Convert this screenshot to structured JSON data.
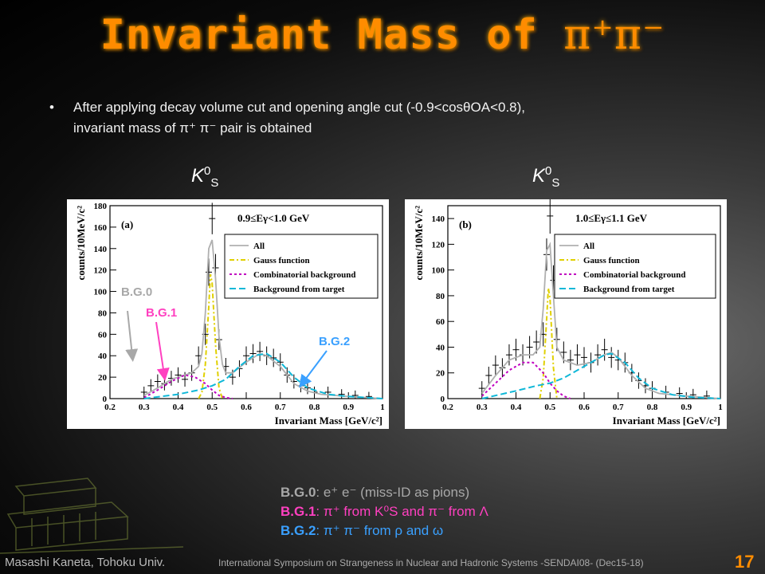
{
  "title": {
    "text": "Invariant Mass of ",
    "sym": "π⁺π⁻"
  },
  "bullet": {
    "line1": "After applying decay volume cut and opening angle cut (-0.9<cosθOA<0.8),",
    "line2": "invariant mass of π⁺ π⁻ pair is obtained"
  },
  "k_labels": [
    "K",
    "0",
    "S"
  ],
  "annotations": {
    "bg0": "B.G.0",
    "bg1": "B.G.1",
    "bg2": "B.G.2"
  },
  "legend_text": [
    {
      "key": "B.G.0",
      "text": ": e⁺ e⁻ (miss-ID as pions)"
    },
    {
      "key": "B.G.1",
      "text": ": π⁺ from K⁰S and π⁻ from Λ"
    },
    {
      "key": "B.G.2",
      "text": ": π⁺ π⁻ from ρ and ω"
    }
  ],
  "footer": {
    "author": "Masashi Kaneta, Tohoku Univ.",
    "conference": "International Symposium on Strangeness in Nuclear and Hadronic Systems -SENDAI08- (Dec15-18)",
    "page": "17"
  },
  "colors": {
    "title": "#ff8c00",
    "bg0": "#a8a8a8",
    "bg1": "#ff40c0",
    "bg2": "#3aa0ff"
  },
  "chart_data": [
    {
      "type": "line",
      "panel": "(a)",
      "annotation": "0.9≤Eγ<1.0 GeV",
      "xlabel": "Invariant Mass [GeV/c²]",
      "ylabel": "counts/10MeV/c²",
      "xlim": [
        0.2,
        1.0
      ],
      "ylim": [
        0,
        180
      ],
      "xticks": [
        "0.2",
        "0.3",
        "0.4",
        "0.5",
        "0.6",
        "0.7",
        "0.8",
        "0.9",
        "1"
      ],
      "yticks": [
        "0",
        "20",
        "40",
        "60",
        "80",
        "100",
        "120",
        "140",
        "160",
        "180"
      ],
      "legend": [
        "All",
        "Gauss function",
        "Combinatorial background",
        "Background from target"
      ],
      "legend_position": "top-right",
      "x": [
        0.3,
        0.32,
        0.34,
        0.36,
        0.38,
        0.4,
        0.42,
        0.44,
        0.46,
        0.48,
        0.49,
        0.5,
        0.51,
        0.52,
        0.54,
        0.56,
        0.58,
        0.6,
        0.62,
        0.64,
        0.66,
        0.68,
        0.7,
        0.72,
        0.74,
        0.76,
        0.78,
        0.8,
        0.84,
        0.88,
        0.92,
        0.96
      ],
      "data": [
        6,
        12,
        16,
        14,
        19,
        22,
        18,
        24,
        40,
        60,
        118,
        168,
        122,
        55,
        30,
        20,
        28,
        40,
        42,
        44,
        40,
        38,
        34,
        22,
        16,
        12,
        10,
        6,
        6,
        4,
        3,
        2
      ],
      "series": [
        {
          "name": "All",
          "x": [
            0.3,
            0.34,
            0.38,
            0.42,
            0.44,
            0.46,
            0.47,
            0.48,
            0.49,
            0.5,
            0.51,
            0.52,
            0.53,
            0.54,
            0.56,
            0.6,
            0.64,
            0.66,
            0.7,
            0.74,
            0.78,
            0.82,
            0.9,
            1.0
          ],
          "y": [
            3,
            10,
            18,
            22,
            24,
            30,
            42,
            80,
            140,
            148,
            112,
            58,
            32,
            24,
            24,
            34,
            42,
            40,
            30,
            14,
            7,
            4,
            2,
            0
          ]
        },
        {
          "name": "Gauss function",
          "x": [
            0.46,
            0.47,
            0.48,
            0.49,
            0.495,
            0.5,
            0.51,
            0.52,
            0.53
          ],
          "y": [
            0,
            6,
            32,
            86,
            116,
            108,
            50,
            10,
            0
          ]
        },
        {
          "name": "Combinatorial background",
          "x": [
            0.3,
            0.34,
            0.38,
            0.42,
            0.45,
            0.48,
            0.5,
            0.52,
            0.54,
            0.56
          ],
          "y": [
            1,
            8,
            16,
            22,
            20,
            14,
            8,
            3,
            1,
            0
          ]
        },
        {
          "name": "Background from target",
          "x": [
            0.3,
            0.4,
            0.46,
            0.5,
            0.54,
            0.58,
            0.62,
            0.66,
            0.7,
            0.74,
            0.78,
            0.84,
            0.9,
            1.0
          ],
          "y": [
            0,
            4,
            8,
            12,
            18,
            30,
            40,
            42,
            34,
            20,
            10,
            4,
            2,
            0
          ]
        }
      ]
    },
    {
      "type": "line",
      "panel": "(b)",
      "annotation": "1.0≤Eγ≤1.1 GeV",
      "xlabel": "Invariant Mass [GeV/c²]",
      "ylabel": "counts/10MeV/c²",
      "xlim": [
        0.2,
        1.0
      ],
      "ylim": [
        0,
        150
      ],
      "xticks": [
        "0.2",
        "0.3",
        "0.4",
        "0.5",
        "0.6",
        "0.7",
        "0.8",
        "0.9",
        "1"
      ],
      "yticks": [
        "0",
        "20",
        "40",
        "60",
        "80",
        "100",
        "120",
        "140"
      ],
      "legend": [
        "All",
        "Gauss function",
        "Combinatorial background",
        "Background from target"
      ],
      "legend_position": "top-right",
      "x": [
        0.3,
        0.32,
        0.34,
        0.36,
        0.38,
        0.4,
        0.42,
        0.44,
        0.46,
        0.48,
        0.49,
        0.5,
        0.51,
        0.52,
        0.54,
        0.56,
        0.58,
        0.6,
        0.62,
        0.64,
        0.66,
        0.68,
        0.7,
        0.72,
        0.74,
        0.76,
        0.78,
        0.8,
        0.84,
        0.88,
        0.92,
        0.96
      ],
      "data": [
        8,
        18,
        26,
        24,
        34,
        38,
        34,
        40,
        44,
        50,
        112,
        142,
        92,
        46,
        36,
        30,
        34,
        32,
        28,
        34,
        38,
        32,
        30,
        28,
        20,
        14,
        10,
        8,
        5,
        4,
        3,
        2
      ],
      "series": [
        {
          "name": "All",
          "x": [
            0.3,
            0.34,
            0.38,
            0.42,
            0.45,
            0.47,
            0.48,
            0.49,
            0.5,
            0.51,
            0.52,
            0.54,
            0.58,
            0.62,
            0.66,
            0.68,
            0.7,
            0.74,
            0.78,
            0.82,
            0.9,
            1.0
          ],
          "y": [
            4,
            18,
            30,
            34,
            34,
            40,
            70,
            115,
            120,
            80,
            40,
            30,
            26,
            28,
            34,
            36,
            32,
            18,
            8,
            4,
            2,
            0
          ]
        },
        {
          "name": "Gauss function",
          "x": [
            0.47,
            0.48,
            0.49,
            0.495,
            0.5,
            0.51,
            0.52
          ],
          "y": [
            0,
            16,
            62,
            86,
            78,
            24,
            0
          ]
        },
        {
          "name": "Combinatorial background",
          "x": [
            0.3,
            0.34,
            0.38,
            0.42,
            0.45,
            0.48,
            0.5,
            0.52,
            0.54,
            0.56
          ],
          "y": [
            2,
            12,
            22,
            28,
            28,
            20,
            12,
            6,
            2,
            0
          ]
        },
        {
          "name": "Background from target",
          "x": [
            0.3,
            0.4,
            0.46,
            0.5,
            0.54,
            0.58,
            0.62,
            0.66,
            0.68,
            0.72,
            0.76,
            0.8,
            0.86,
            0.92,
            1.0
          ],
          "y": [
            0,
            6,
            10,
            12,
            16,
            22,
            28,
            34,
            35,
            28,
            16,
            8,
            3,
            1,
            0
          ]
        }
      ]
    }
  ]
}
